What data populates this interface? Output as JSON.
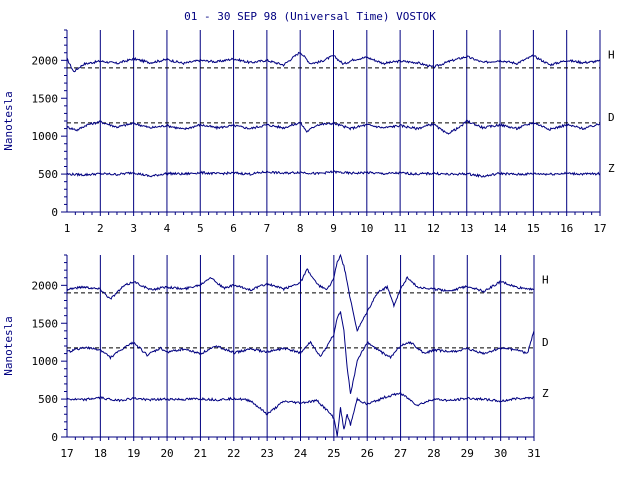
{
  "title": "01 - 30 SEP 98 (Universal Time) VOSTOK",
  "colors": {
    "ink": "#000080",
    "background": "#ffffff"
  },
  "chart_data": [
    {
      "type": "line",
      "xlabel": "",
      "ylabel": "Nanotesla",
      "x_ticks": [
        "1",
        "2",
        "3",
        "4",
        "5",
        "6",
        "7",
        "8",
        "9",
        "10",
        "11",
        "12",
        "13",
        "14",
        "15",
        "16",
        "17"
      ],
      "xlim": [
        1,
        17
      ],
      "ylim": [
        0,
        2400
      ],
      "y_ticks": [
        "0",
        "500",
        "1000",
        "1500",
        "2000"
      ],
      "y_tick_values": [
        0,
        500,
        1000,
        1500,
        2000
      ],
      "grid": "vertical lines at each day",
      "reference_lines": [
        1900,
        1175
      ],
      "series": [
        {
          "name": "H",
          "x": [
            1,
            1.2,
            1.5,
            2,
            2.5,
            3,
            3.5,
            4,
            4.5,
            5,
            5.5,
            6,
            6.5,
            7,
            7.5,
            8,
            8.3,
            8.6,
            9,
            9.3,
            9.6,
            10,
            10.5,
            11,
            11.5,
            12,
            12.5,
            13,
            13.5,
            14,
            14.5,
            15,
            15.5,
            16,
            16.5,
            17
          ],
          "values": [
            2020,
            1850,
            1950,
            1990,
            1960,
            2020,
            1970,
            2010,
            1960,
            2000,
            1980,
            2020,
            1970,
            2000,
            1940,
            2110,
            1960,
            1980,
            2060,
            1950,
            2010,
            2040,
            1960,
            1990,
            1970,
            1910,
            1990,
            2050,
            1970,
            2000,
            1960,
            2060,
            1940,
            2000,
            1970,
            1990
          ]
        },
        {
          "name": "D",
          "x": [
            1,
            1.3,
            1.6,
            2,
            2.5,
            3,
            3.5,
            4,
            4.5,
            5,
            5.5,
            6,
            6.5,
            7,
            7.5,
            8,
            8.2,
            8.5,
            9,
            9.5,
            10,
            10.5,
            11,
            11.5,
            12,
            12.4,
            12.8,
            13,
            13.5,
            14,
            14.5,
            15,
            15.5,
            16,
            16.5,
            17
          ],
          "values": [
            1120,
            1080,
            1150,
            1190,
            1120,
            1170,
            1110,
            1140,
            1090,
            1150,
            1110,
            1140,
            1100,
            1150,
            1110,
            1180,
            1060,
            1150,
            1170,
            1100,
            1150,
            1110,
            1140,
            1100,
            1160,
            1030,
            1120,
            1200,
            1110,
            1150,
            1100,
            1180,
            1090,
            1150,
            1100,
            1160
          ]
        },
        {
          "name": "Z",
          "x": [
            1,
            1.5,
            2,
            2.5,
            3,
            3.5,
            4,
            4.5,
            5,
            5.5,
            6,
            6.5,
            7,
            7.5,
            8,
            8.5,
            9,
            9.5,
            10,
            10.5,
            11,
            11.5,
            12,
            12.5,
            13,
            13.5,
            14,
            14.5,
            15,
            15.5,
            16,
            16.5,
            17
          ],
          "values": [
            500,
            490,
            505,
            495,
            520,
            470,
            510,
            500,
            520,
            505,
            515,
            500,
            530,
            510,
            525,
            505,
            530,
            510,
            520,
            505,
            515,
            500,
            510,
            495,
            505,
            470,
            510,
            495,
            505,
            500,
            510,
            500,
            505
          ]
        }
      ]
    },
    {
      "type": "line",
      "xlabel": "",
      "ylabel": "Nanotesla",
      "x_ticks": [
        "17",
        "18",
        "19",
        "20",
        "21",
        "22",
        "23",
        "24",
        "25",
        "26",
        "27",
        "28",
        "29",
        "30",
        "31"
      ],
      "xlim": [
        17,
        31
      ],
      "ylim": [
        0,
        2400
      ],
      "y_ticks": [
        "0",
        "500",
        "1000",
        "1500",
        "2000"
      ],
      "y_tick_values": [
        0,
        500,
        1000,
        1500,
        2000
      ],
      "grid": "vertical lines at each day",
      "reference_lines": [
        1900,
        1175
      ],
      "series": [
        {
          "name": "H",
          "x": [
            17,
            17.5,
            18,
            18.3,
            18.7,
            19,
            19.5,
            20,
            20.5,
            21,
            21.3,
            21.7,
            22,
            22.5,
            23,
            23.5,
            24,
            24.2,
            24.5,
            24.8,
            25,
            25.1,
            25.2,
            25.3,
            25.4,
            25.5,
            25.7,
            26,
            26.3,
            26.6,
            26.8,
            27,
            27.2,
            27.5,
            28,
            28.5,
            29,
            29.5,
            30,
            30.5,
            31
          ],
          "values": [
            1950,
            1980,
            1950,
            1820,
            1990,
            2050,
            1940,
            1980,
            1950,
            2010,
            2110,
            1960,
            2000,
            1940,
            2020,
            1950,
            2040,
            2210,
            2010,
            1940,
            2100,
            2300,
            2400,
            2250,
            2050,
            1800,
            1400,
            1650,
            1900,
            1980,
            1740,
            1950,
            2100,
            1980,
            1950,
            1930,
            1990,
            1920,
            2050,
            1970,
            1950
          ]
        },
        {
          "name": "D",
          "x": [
            17,
            17.5,
            18,
            18.3,
            18.7,
            19,
            19.4,
            19.8,
            20,
            20.5,
            21,
            21.5,
            22,
            22.5,
            23,
            23.5,
            24,
            24.3,
            24.6,
            25,
            25.1,
            25.2,
            25.3,
            25.4,
            25.5,
            25.7,
            26,
            26.3,
            26.7,
            27,
            27.3,
            27.7,
            28,
            28.5,
            29,
            29.5,
            30,
            30.5,
            30.8,
            31
          ],
          "values": [
            1120,
            1180,
            1150,
            1050,
            1170,
            1250,
            1080,
            1170,
            1120,
            1160,
            1100,
            1200,
            1110,
            1160,
            1120,
            1170,
            1110,
            1250,
            1050,
            1350,
            1580,
            1650,
            1400,
            900,
            570,
            1000,
            1250,
            1150,
            1050,
            1200,
            1250,
            1100,
            1150,
            1120,
            1160,
            1100,
            1170,
            1150,
            1100,
            1400
          ]
        },
        {
          "name": "Z",
          "x": [
            17,
            17.5,
            18,
            18.5,
            19,
            19.5,
            20,
            20.5,
            21,
            21.5,
            22,
            22.5,
            23,
            23.5,
            24,
            24.5,
            24.8,
            25,
            25.1,
            25.2,
            25.3,
            25.4,
            25.5,
            25.7,
            26,
            26.5,
            27,
            27.5,
            28,
            28.5,
            29,
            29.5,
            30,
            30.5,
            31
          ],
          "values": [
            500,
            490,
            520,
            480,
            510,
            490,
            500,
            495,
            505,
            490,
            510,
            480,
            300,
            470,
            450,
            480,
            350,
            250,
            20,
            380,
            100,
            300,
            160,
            500,
            430,
            520,
            580,
            420,
            500,
            480,
            510,
            500,
            470,
            510,
            520
          ]
        }
      ]
    }
  ]
}
